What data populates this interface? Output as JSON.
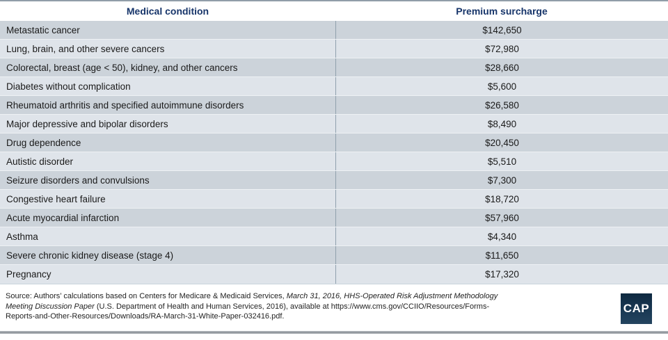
{
  "table": {
    "columns": [
      "Medical condition",
      "Premium surcharge"
    ],
    "rows": [
      {
        "condition": "Metastatic cancer",
        "surcharge": "$142,650"
      },
      {
        "condition": "Lung, brain, and other severe cancers",
        "surcharge": "$72,980"
      },
      {
        "condition": "Colorectal, breast (age < 50), kidney, and other cancers",
        "surcharge": "$28,660"
      },
      {
        "condition": "Diabetes without complication",
        "surcharge": "$5,600"
      },
      {
        "condition": "Rheumatoid arthritis and specified autoimmune disorders",
        "surcharge": "$26,580"
      },
      {
        "condition": "Major depressive and bipolar disorders",
        "surcharge": "$8,490"
      },
      {
        "condition": "Drug dependence",
        "surcharge": "$20,450"
      },
      {
        "condition": "Autistic disorder",
        "surcharge": "$5,510"
      },
      {
        "condition": "Seizure disorders and convulsions",
        "surcharge": "$7,300"
      },
      {
        "condition": "Congestive heart failure",
        "surcharge": "$18,720"
      },
      {
        "condition": "Acute myocardial infarction",
        "surcharge": "$57,960"
      },
      {
        "condition": "Asthma",
        "surcharge": "$4,340"
      },
      {
        "condition": "Severe chronic kidney disease (stage 4)",
        "surcharge": "$11,650"
      },
      {
        "condition": "Pregnancy",
        "surcharge": "$17,320"
      }
    ]
  },
  "chart_data": {
    "type": "table",
    "columns": [
      "Medical condition",
      "Premium surcharge"
    ],
    "rows": [
      [
        "Metastatic cancer",
        142650
      ],
      [
        "Lung, brain, and other severe cancers",
        72980
      ],
      [
        "Colorectal, breast (age < 50), kidney, and other cancers",
        28660
      ],
      [
        "Diabetes without complication",
        5600
      ],
      [
        "Rheumatoid arthritis and specified autoimmune disorders",
        26580
      ],
      [
        "Major depressive and bipolar disorders",
        8490
      ],
      [
        "Drug dependence",
        20450
      ],
      [
        "Autistic disorder",
        5510
      ],
      [
        "Seizure disorders and convulsions",
        7300
      ],
      [
        "Congestive heart failure",
        18720
      ],
      [
        "Acute myocardial infarction",
        57960
      ],
      [
        "Asthma",
        4340
      ],
      [
        "Severe chronic kidney disease (stage 4)",
        11650
      ],
      [
        "Pregnancy",
        17320
      ]
    ]
  },
  "footer": {
    "segments": [
      {
        "text": "Source: Authors’ calculations based on Centers for Medicare & Medicaid Services, ",
        "italic": false
      },
      {
        "text": "March 31, 2016, HHS-Operated Risk Adjustment Methodology",
        "italic": true
      },
      {
        "br": true
      },
      {
        "text": "Meeting Discussion Paper",
        "italic": true
      },
      {
        "text": " (U.S. Department of Health and Human Services, 2016), available at https://www.cms.gov/CCIIO/Resources/Forms-",
        "italic": false
      },
      {
        "br": true
      },
      {
        "text": "Reports-and-Other-Resources/Downloads/RA-March-31-White-Paper-032416.pdf.",
        "italic": false
      }
    ],
    "logo_text": "CAP"
  },
  "colors": {
    "header_text": "#17356a",
    "row_dark": "#ccd3da",
    "row_light": "#dfe4ea",
    "divider": "#8fa0ad",
    "logo_navy": "#16324c"
  }
}
